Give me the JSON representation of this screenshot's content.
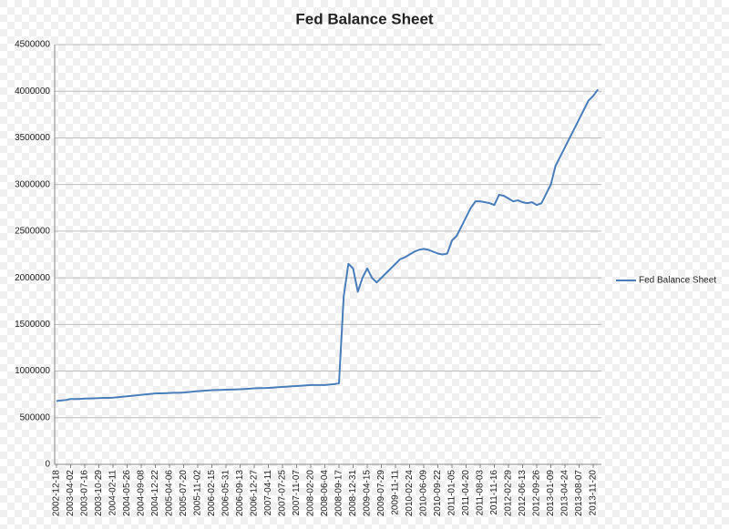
{
  "chart_data": {
    "type": "line",
    "title": "Fed Balance Sheet",
    "categories": [
      "2002-12-18",
      null,
      null,
      "2003-04-02",
      null,
      null,
      "2003-07-16",
      null,
      null,
      "2003-10-29",
      null,
      null,
      "2004-02-11",
      null,
      null,
      "2004-05-26",
      null,
      null,
      "2004-09-08",
      null,
      null,
      "2004-12-22",
      null,
      null,
      "2005-04-06",
      null,
      null,
      "2005-07-20",
      null,
      null,
      "2005-11-02",
      null,
      null,
      "2006-02-15",
      null,
      null,
      "2006-05-31",
      null,
      null,
      "2006-09-13",
      null,
      null,
      "2006-12-27",
      null,
      null,
      "2007-04-11",
      null,
      null,
      "2007-07-25",
      null,
      null,
      "2007-11-07",
      null,
      null,
      "2008-02-20",
      null,
      null,
      "2008-06-04",
      null,
      null,
      "2008-09-17",
      null,
      null,
      "2008-12-31",
      null,
      null,
      "2009-04-15",
      null,
      null,
      "2009-07-29",
      null,
      null,
      "2009-11-11",
      null,
      null,
      "2010-02-24",
      null,
      null,
      "2010-06-09",
      null,
      null,
      "2010-09-22",
      null,
      null,
      "2011-01-05",
      null,
      null,
      "2011-04-20",
      null,
      null,
      "2011-08-03",
      null,
      null,
      "2011-11-16",
      null,
      null,
      "2012-02-29",
      null,
      null,
      "2012-06-13",
      null,
      null,
      "2012-09-26",
      null,
      null,
      "2013-01-09",
      null,
      null,
      "2013-04-24",
      null,
      null,
      "2013-08-07",
      null,
      null,
      "2013-11-20",
      null
    ],
    "series": [
      {
        "name": "Fed Balance Sheet",
        "color": "#4a7ebb",
        "values": [
          680000,
          685000,
          690000,
          700000,
          700000,
          702000,
          705000,
          707000,
          708000,
          710000,
          712000,
          713000,
          715000,
          720000,
          725000,
          730000,
          735000,
          740000,
          745000,
          750000,
          755000,
          760000,
          762000,
          763000,
          765000,
          767000,
          768000,
          770000,
          775000,
          780000,
          785000,
          788000,
          792000,
          795000,
          797000,
          798000,
          800000,
          802000,
          803000,
          805000,
          808000,
          812000,
          815000,
          817000,
          818000,
          820000,
          823000,
          827000,
          830000,
          833000,
          837000,
          840000,
          843000,
          847000,
          850000,
          850000,
          850000,
          850000,
          855000,
          860000,
          870000,
          1800000,
          2150000,
          2100000,
          1850000,
          2000000,
          2100000,
          2000000,
          1950000,
          2000000,
          2050000,
          2100000,
          2150000,
          2200000,
          2220000,
          2250000,
          2280000,
          2300000,
          2310000,
          2300000,
          2280000,
          2260000,
          2250000,
          2260000,
          2400000,
          2450000,
          2550000,
          2650000,
          2750000,
          2820000,
          2820000,
          2810000,
          2800000,
          2780000,
          2890000,
          2880000,
          2850000,
          2820000,
          2830000,
          2810000,
          2800000,
          2810000,
          2780000,
          2800000,
          2900000,
          3000000,
          3200000,
          3300000,
          3400000,
          3500000,
          3600000,
          3700000,
          3800000,
          3900000,
          3950000,
          4020000
        ]
      }
    ],
    "ylim": [
      0,
      4500000
    ],
    "yticks": [
      0,
      500000,
      1000000,
      1500000,
      2000000,
      2500000,
      3000000,
      3500000,
      4000000,
      4500000
    ],
    "grid": true,
    "legend": "right"
  }
}
